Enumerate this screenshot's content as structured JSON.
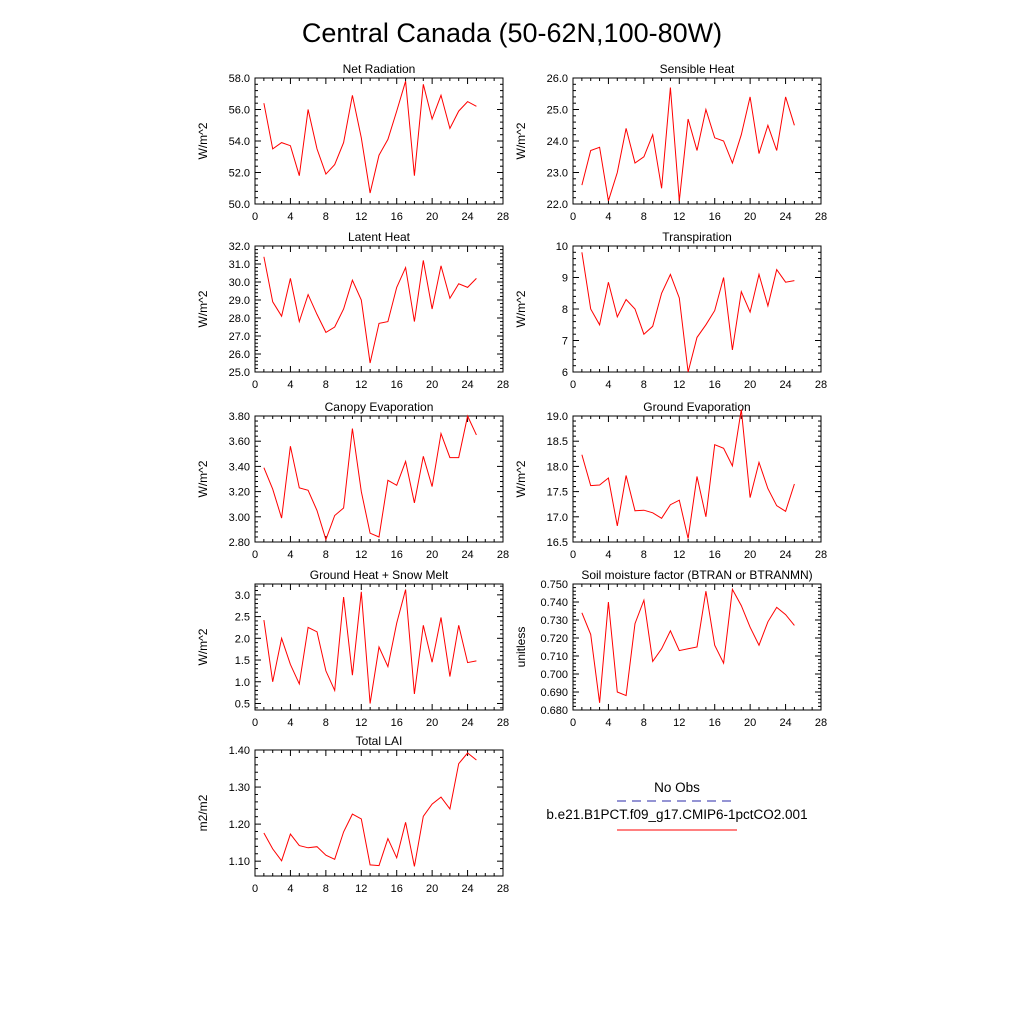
{
  "title": "Central Canada (50-62N,100-80W)",
  "legend": {
    "obs_label": "No Obs",
    "model_label": "b.e21.B1PCT.f09_g17.CMIP6-1pctCO2.001",
    "obs_color": "#2a2aa8",
    "model_color": "#ff0000"
  },
  "chart_data": [
    {
      "type": "line",
      "title": "Net Radiation",
      "ylabel": "W/m^2",
      "xlabel": "",
      "xlim": [
        0,
        28
      ],
      "xticks": [
        0,
        4,
        8,
        12,
        16,
        20,
        24,
        28
      ],
      "ylim": [
        50,
        58
      ],
      "yticks": [
        50,
        52,
        54,
        56,
        58
      ],
      "ydecimals": 1,
      "series": [
        {
          "name": "b.e21.B1PCT.f09_g17.CMIP6-1pctCO2.001",
          "x": [
            1,
            2,
            3,
            4,
            5,
            6,
            7,
            8,
            9,
            10,
            11,
            12,
            13,
            14,
            15,
            16,
            17,
            18,
            19,
            20,
            21,
            22,
            23,
            24,
            25
          ],
          "y": [
            56.4,
            53.5,
            53.9,
            53.7,
            51.8,
            56.0,
            53.5,
            51.9,
            52.5,
            53.9,
            56.9,
            54.2,
            50.7,
            53.1,
            54.1,
            55.9,
            57.8,
            51.8,
            57.6,
            55.4,
            56.9,
            54.8,
            55.9,
            56.5,
            56.2
          ]
        }
      ]
    },
    {
      "type": "line",
      "title": "Sensible Heat",
      "ylabel": "W/m^2",
      "xlabel": "",
      "xlim": [
        0,
        28
      ],
      "xticks": [
        0,
        4,
        8,
        12,
        16,
        20,
        24,
        28
      ],
      "ylim": [
        22,
        26
      ],
      "yticks": [
        22,
        23,
        24,
        25,
        26
      ],
      "ydecimals": 1,
      "series": [
        {
          "name": "b.e21.B1PCT.f09_g17.CMIP6-1pctCO2.001",
          "x": [
            1,
            2,
            3,
            4,
            5,
            6,
            7,
            8,
            9,
            10,
            11,
            12,
            13,
            14,
            15,
            16,
            17,
            18,
            19,
            20,
            21,
            22,
            23,
            24,
            25
          ],
          "y": [
            22.6,
            23.7,
            23.8,
            22.1,
            23.0,
            24.4,
            23.3,
            23.5,
            24.2,
            22.5,
            25.7,
            22.1,
            24.7,
            23.7,
            25.0,
            24.1,
            24.0,
            23.3,
            24.2,
            25.4,
            23.6,
            24.5,
            23.7,
            25.4,
            24.5
          ]
        }
      ]
    },
    {
      "type": "line",
      "title": "Latent Heat",
      "ylabel": "W/m^2",
      "xlabel": "",
      "xlim": [
        0,
        28
      ],
      "xticks": [
        0,
        4,
        8,
        12,
        16,
        20,
        24,
        28
      ],
      "ylim": [
        25,
        32
      ],
      "yticks": [
        25,
        26,
        27,
        28,
        29,
        30,
        31,
        32
      ],
      "ydecimals": 1,
      "series": [
        {
          "name": "b.e21.B1PCT.f09_g17.CMIP6-1pctCO2.001",
          "x": [
            1,
            2,
            3,
            4,
            5,
            6,
            7,
            8,
            9,
            10,
            11,
            12,
            13,
            14,
            15,
            16,
            17,
            18,
            19,
            20,
            21,
            22,
            23,
            24,
            25
          ],
          "y": [
            31.4,
            28.9,
            28.1,
            30.2,
            27.8,
            29.3,
            28.2,
            27.2,
            27.5,
            28.5,
            30.1,
            29.0,
            25.5,
            27.7,
            27.8,
            29.7,
            30.8,
            27.8,
            31.2,
            28.5,
            30.9,
            29.1,
            29.9,
            29.7,
            30.2
          ]
        }
      ]
    },
    {
      "type": "line",
      "title": "Transpiration",
      "ylabel": "W/m^2",
      "xlabel": "",
      "xlim": [
        0,
        28
      ],
      "xticks": [
        0,
        4,
        8,
        12,
        16,
        20,
        24,
        28
      ],
      "ylim": [
        6,
        10
      ],
      "yticks": [
        6,
        7,
        8,
        9,
        10
      ],
      "ydecimals": 0,
      "series": [
        {
          "name": "b.e21.B1PCT.f09_g17.CMIP6-1pctCO2.001",
          "x": [
            1,
            2,
            3,
            4,
            5,
            6,
            7,
            8,
            9,
            10,
            11,
            12,
            13,
            14,
            15,
            16,
            17,
            18,
            19,
            20,
            21,
            22,
            23,
            24,
            25
          ],
          "y": [
            9.8,
            8.0,
            7.5,
            8.85,
            7.75,
            8.3,
            8.0,
            7.2,
            7.45,
            8.5,
            9.1,
            8.35,
            6.0,
            7.1,
            7.5,
            7.95,
            9.0,
            6.7,
            8.55,
            7.9,
            9.1,
            8.1,
            9.25,
            8.85,
            8.9
          ]
        }
      ]
    },
    {
      "type": "line",
      "title": "Canopy Evaporation",
      "ylabel": "W/m^2",
      "xlabel": "",
      "xlim": [
        0,
        28
      ],
      "xticks": [
        0,
        4,
        8,
        12,
        16,
        20,
        24,
        28
      ],
      "ylim": [
        2.8,
        3.8
      ],
      "yticks": [
        2.8,
        3.0,
        3.2,
        3.4,
        3.6,
        3.8
      ],
      "ydecimals": 2,
      "series": [
        {
          "name": "b.e21.B1PCT.f09_g17.CMIP6-1pctCO2.001",
          "x": [
            1,
            2,
            3,
            4,
            5,
            6,
            7,
            8,
            9,
            10,
            11,
            12,
            13,
            14,
            15,
            16,
            17,
            18,
            19,
            20,
            21,
            22,
            23,
            24,
            25
          ],
          "y": [
            3.39,
            3.22,
            2.99,
            3.56,
            3.23,
            3.21,
            3.05,
            2.82,
            3.01,
            3.07,
            3.7,
            3.2,
            2.87,
            2.84,
            3.29,
            3.25,
            3.44,
            3.11,
            3.48,
            3.24,
            3.66,
            3.47,
            3.47,
            3.8,
            3.65
          ]
        }
      ]
    },
    {
      "type": "line",
      "title": "Ground Evaporation",
      "ylabel": "W/m^2",
      "xlabel": "",
      "xlim": [
        0,
        28
      ],
      "xticks": [
        0,
        4,
        8,
        12,
        16,
        20,
        24,
        28
      ],
      "ylim": [
        16.5,
        19.0
      ],
      "yticks": [
        16.5,
        17.0,
        17.5,
        18.0,
        18.5,
        19.0
      ],
      "ydecimals": 1,
      "series": [
        {
          "name": "b.e21.B1PCT.f09_g17.CMIP6-1pctCO2.001",
          "x": [
            1,
            2,
            3,
            4,
            5,
            6,
            7,
            8,
            9,
            10,
            11,
            12,
            13,
            14,
            15,
            16,
            17,
            18,
            19,
            20,
            21,
            22,
            23,
            24,
            25
          ],
          "y": [
            18.23,
            17.62,
            17.63,
            17.77,
            16.82,
            17.82,
            17.12,
            17.13,
            17.08,
            16.97,
            17.24,
            17.33,
            16.57,
            17.8,
            17.0,
            18.43,
            18.36,
            18.01,
            19.13,
            17.38,
            18.08,
            17.56,
            17.22,
            17.11,
            17.65
          ]
        }
      ]
    },
    {
      "type": "line",
      "title": "Ground Heat + Snow Melt",
      "ylabel": "W/m^2",
      "xlabel": "",
      "xlim": [
        0,
        28
      ],
      "xticks": [
        0,
        4,
        8,
        12,
        16,
        20,
        24,
        28
      ],
      "ylim": [
        0.35,
        3.25
      ],
      "yticks": [
        0.5,
        1.0,
        1.5,
        2.0,
        2.5,
        3.0
      ],
      "ydecimals": 1,
      "series": [
        {
          "name": "b.e21.B1PCT.f09_g17.CMIP6-1pctCO2.001",
          "x": [
            1,
            2,
            3,
            4,
            5,
            6,
            7,
            8,
            9,
            10,
            11,
            12,
            13,
            14,
            15,
            16,
            17,
            18,
            19,
            20,
            21,
            22,
            23,
            24,
            25
          ],
          "y": [
            2.42,
            1.0,
            2.0,
            1.4,
            0.95,
            2.25,
            2.15,
            1.25,
            0.8,
            2.95,
            1.15,
            3.07,
            0.5,
            1.8,
            1.35,
            2.35,
            3.12,
            0.72,
            2.3,
            1.45,
            2.48,
            1.12,
            2.3,
            1.44,
            1.48
          ]
        }
      ]
    },
    {
      "type": "line",
      "title": "Soil moisture factor (BTRAN or BTRANMN)",
      "ylabel": "unitless",
      "xlabel": "",
      "xlim": [
        0,
        28
      ],
      "xticks": [
        0,
        4,
        8,
        12,
        16,
        20,
        24,
        28
      ],
      "ylim": [
        0.68,
        0.75
      ],
      "yticks": [
        0.68,
        0.69,
        0.7,
        0.71,
        0.72,
        0.73,
        0.74,
        0.75
      ],
      "ydecimals": 3,
      "series": [
        {
          "name": "b.e21.B1PCT.f09_g17.CMIP6-1pctCO2.001",
          "x": [
            1,
            2,
            3,
            4,
            5,
            6,
            7,
            8,
            9,
            10,
            11,
            12,
            13,
            14,
            15,
            16,
            17,
            18,
            19,
            20,
            21,
            22,
            23,
            24,
            25
          ],
          "y": [
            0.734,
            0.722,
            0.684,
            0.74,
            0.69,
            0.688,
            0.728,
            0.741,
            0.707,
            0.714,
            0.724,
            0.713,
            0.714,
            0.715,
            0.746,
            0.716,
            0.706,
            0.747,
            0.738,
            0.726,
            0.716,
            0.729,
            0.737,
            0.733,
            0.727
          ]
        }
      ]
    },
    {
      "type": "line",
      "title": "Total LAI",
      "ylabel": "m2/m2",
      "xlabel": "",
      "xlim": [
        0,
        28
      ],
      "xticks": [
        0,
        4,
        8,
        12,
        16,
        20,
        24,
        28
      ],
      "ylim": [
        1.06,
        1.4
      ],
      "yticks": [
        1.1,
        1.2,
        1.3,
        1.4
      ],
      "ydecimals": 2,
      "series": [
        {
          "name": "b.e21.B1PCT.f09_g17.CMIP6-1pctCO2.001",
          "x": [
            1,
            2,
            3,
            4,
            5,
            6,
            7,
            8,
            9,
            10,
            11,
            12,
            13,
            14,
            15,
            16,
            17,
            18,
            19,
            20,
            21,
            22,
            23,
            24,
            25
          ],
          "y": [
            1.176,
            1.133,
            1.101,
            1.173,
            1.142,
            1.136,
            1.139,
            1.116,
            1.105,
            1.179,
            1.227,
            1.214,
            1.09,
            1.088,
            1.161,
            1.109,
            1.205,
            1.086,
            1.221,
            1.254,
            1.273,
            1.241,
            1.363,
            1.392,
            1.373
          ]
        }
      ]
    }
  ]
}
